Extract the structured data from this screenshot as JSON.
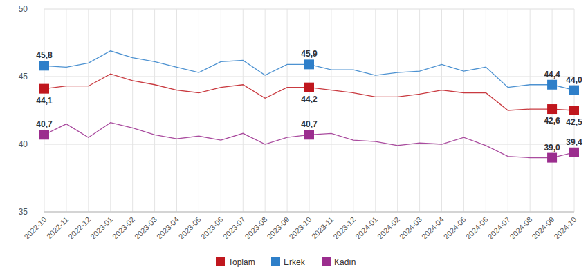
{
  "chart_data": {
    "type": "line",
    "categories": [
      "2022-10",
      "2022-11",
      "2022-12",
      "2023-01",
      "2023-02",
      "2023-03",
      "2023-04",
      "2023-05",
      "2023-06",
      "2023-07",
      "2023-08",
      "2023-09",
      "2023-10",
      "2023-11",
      "2023-12",
      "2024-01",
      "2024-02",
      "2024-03",
      "2024-04",
      "2024-05",
      "2024-06",
      "2024-07",
      "2024-08",
      "2024-09",
      "2024-10"
    ],
    "series": [
      {
        "name": "Toplam",
        "color": "#c0171e",
        "values": [
          44.1,
          44.3,
          44.3,
          45.2,
          44.7,
          44.4,
          44.0,
          43.8,
          44.2,
          44.4,
          43.4,
          44.2,
          44.2,
          44.0,
          43.8,
          43.5,
          43.5,
          43.7,
          44.0,
          43.8,
          43.8,
          42.5,
          42.6,
          42.6,
          42.5
        ],
        "value_labels": [
          "44,1",
          null,
          null,
          null,
          null,
          null,
          null,
          null,
          null,
          null,
          null,
          null,
          "44,2",
          null,
          null,
          null,
          null,
          null,
          null,
          null,
          null,
          null,
          null,
          "42,6",
          "42,5"
        ]
      },
      {
        "name": "Erkek",
        "color": "#2e7fc9",
        "values": [
          45.8,
          45.7,
          46.0,
          46.9,
          46.4,
          46.1,
          45.7,
          45.3,
          46.1,
          46.2,
          45.1,
          45.9,
          45.9,
          45.5,
          45.5,
          45.1,
          45.3,
          45.4,
          45.9,
          45.4,
          45.7,
          44.2,
          44.4,
          44.4,
          44.0
        ],
        "value_labels": [
          "45,8",
          null,
          null,
          null,
          null,
          null,
          null,
          null,
          null,
          null,
          null,
          null,
          "45,9",
          null,
          null,
          null,
          null,
          null,
          null,
          null,
          null,
          null,
          null,
          "44,4",
          "44,0"
        ]
      },
      {
        "name": "Kadın",
        "color": "#9b2d8e",
        "values": [
          40.7,
          41.5,
          40.5,
          41.6,
          41.2,
          40.7,
          40.4,
          40.6,
          40.3,
          40.8,
          40.0,
          40.5,
          40.7,
          40.8,
          40.3,
          40.2,
          39.9,
          40.1,
          40.0,
          40.5,
          39.9,
          39.1,
          39.0,
          39.0,
          39.4
        ],
        "value_labels": [
          "40,7",
          null,
          null,
          null,
          null,
          null,
          null,
          null,
          null,
          null,
          null,
          null,
          "40,7",
          null,
          null,
          null,
          null,
          null,
          null,
          null,
          null,
          null,
          null,
          "39,0",
          "39,4"
        ]
      }
    ],
    "ylim": [
      35,
      50
    ],
    "yticks": [
      35,
      40,
      45,
      50
    ],
    "grid": true,
    "legend": "bottom",
    "data_labels": true,
    "marker": "square"
  }
}
